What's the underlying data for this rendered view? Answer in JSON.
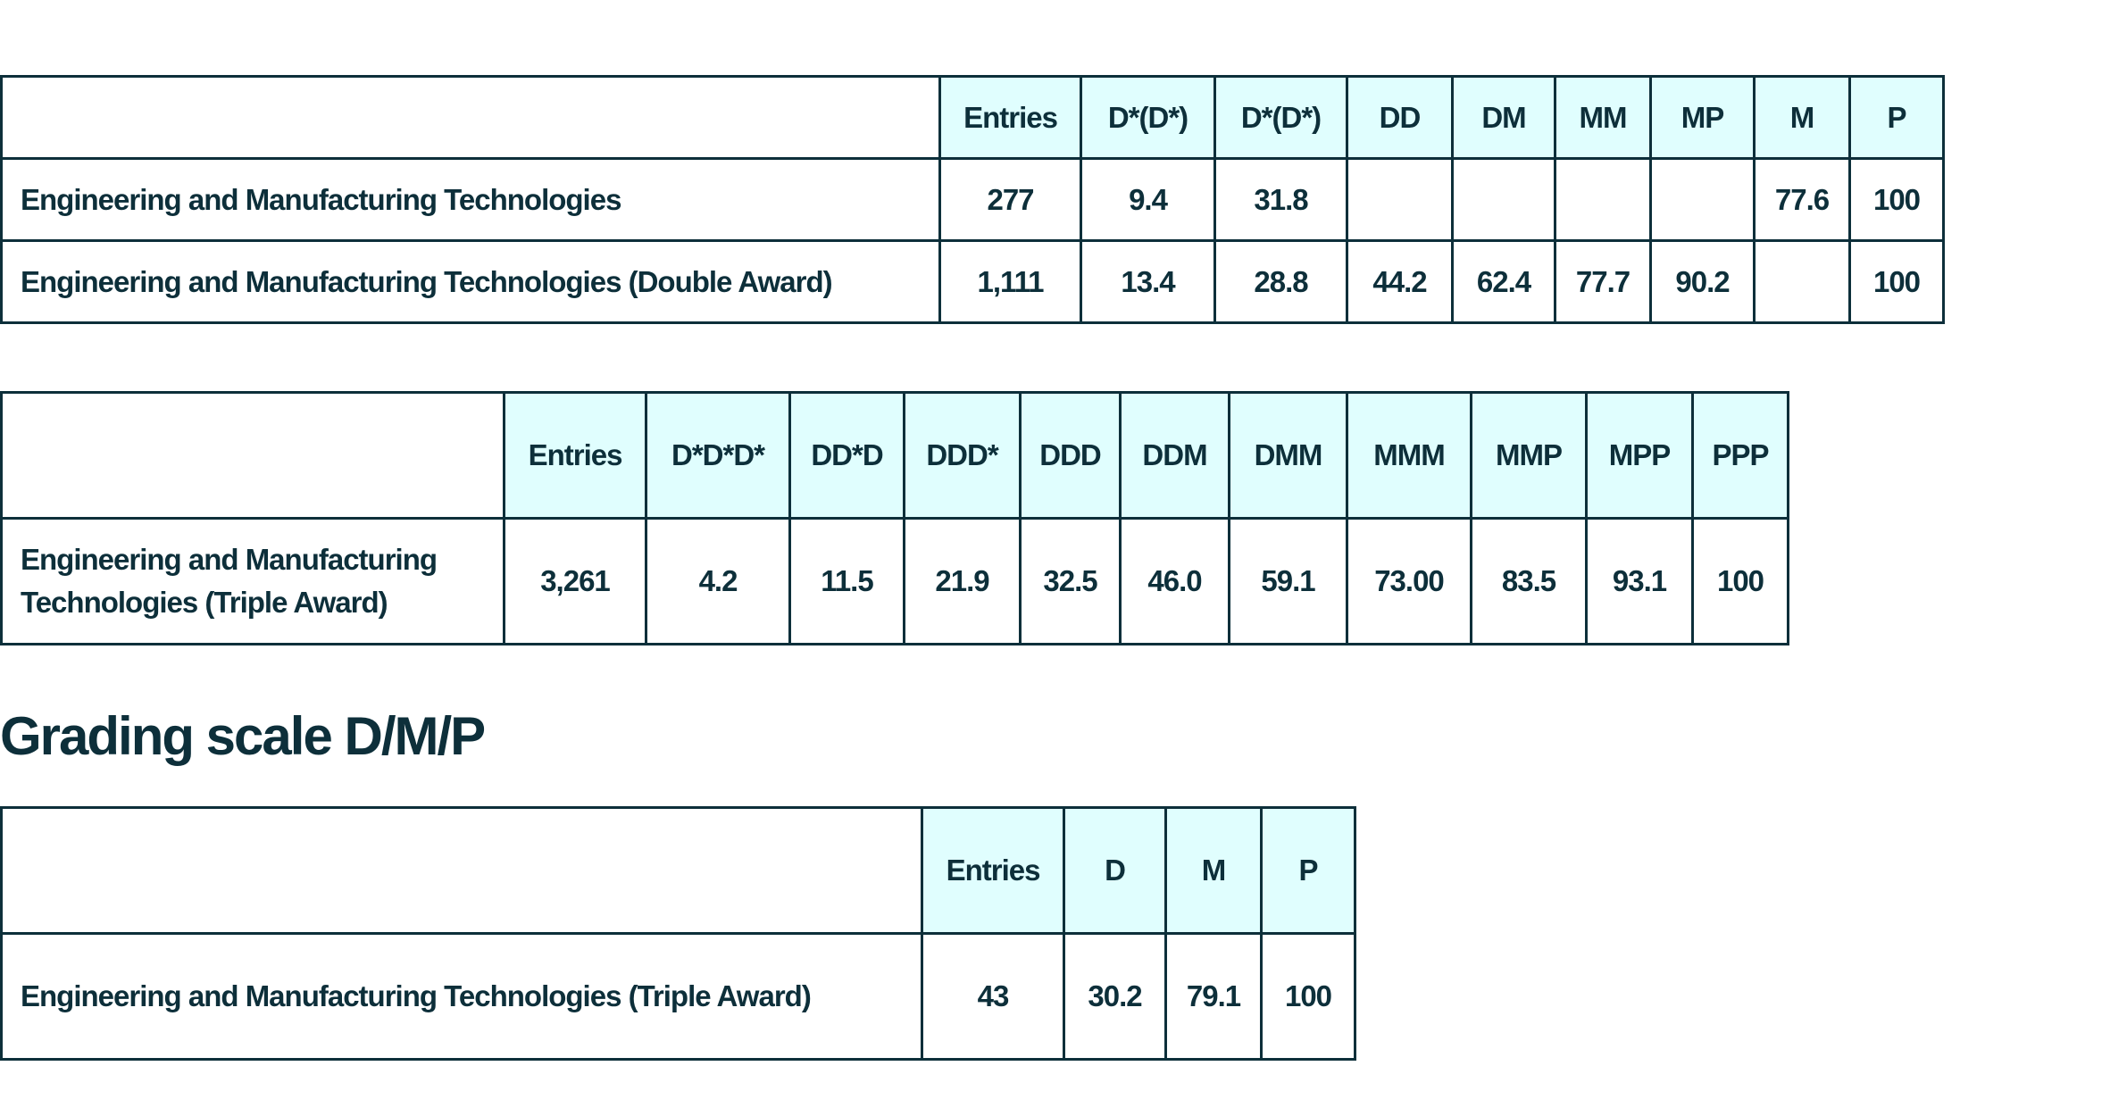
{
  "heading": "Grading scale D/M/P",
  "tables": [
    {
      "header": [
        null,
        "Entries",
        "D*(D*)",
        "D*(D*)",
        "DD",
        "DM",
        "MM",
        "MP",
        "M",
        "P"
      ],
      "rows": [
        [
          "Engineering and Manufacturing Technologies",
          "277",
          "9.4",
          "31.8",
          null,
          null,
          null,
          null,
          "77.6",
          "100"
        ],
        [
          "Engineering and Manufacturing Technologies (Double Award)",
          "1,111",
          "13.4",
          "28.8",
          "44.2",
          "62.4",
          "77.7",
          "90.2",
          null,
          "100"
        ]
      ]
    },
    {
      "header": [
        null,
        "Entries",
        "D*D*D*",
        "DD*D",
        "DDD*",
        "DDD",
        "DDM",
        "DMM",
        "MMM",
        "MMP",
        "MPP",
        "PPP"
      ],
      "rows": [
        [
          "Engineering and Manufacturing Technologies (Triple Award)",
          "3,261",
          "4.2",
          "11.5",
          "21.9",
          "32.5",
          "46.0",
          "59.1",
          "73.00",
          "83.5",
          "93.1",
          "100"
        ]
      ]
    },
    {
      "header": [
        null,
        "Entries",
        "D",
        "M",
        "P"
      ],
      "rows": [
        [
          "Engineering and Manufacturing Technologies (Triple Award)",
          "43",
          "30.2",
          "79.1",
          "100"
        ]
      ]
    }
  ]
}
